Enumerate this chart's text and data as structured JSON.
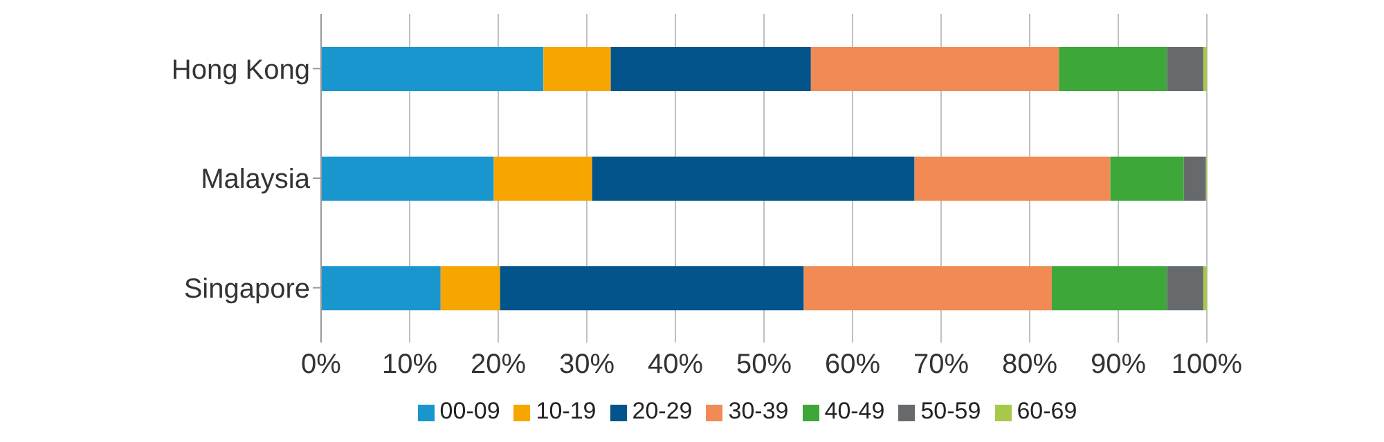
{
  "chart_data": {
    "type": "bar",
    "orientation": "horizontal",
    "stacked": true,
    "categories": [
      "Hong Kong",
      "Malaysia",
      "Singapore"
    ],
    "series": [
      {
        "name": "00-09",
        "color": "#1a96cf",
        "values": [
          25.1,
          19.5,
          13.5
        ]
      },
      {
        "name": "10-19",
        "color": "#f7a600",
        "values": [
          7.6,
          11.1,
          6.7
        ]
      },
      {
        "name": "20-29",
        "color": "#02548a",
        "values": [
          22.6,
          36.4,
          34.3
        ]
      },
      {
        "name": "30-39",
        "color": "#f28a55",
        "values": [
          28.0,
          22.1,
          28.0
        ]
      },
      {
        "name": "40-49",
        "color": "#3da739",
        "values": [
          12.2,
          8.3,
          13.0
        ]
      },
      {
        "name": "50-59",
        "color": "#676a6d",
        "values": [
          4.1,
          2.5,
          4.1
        ]
      },
      {
        "name": "60-69",
        "color": "#a7c94a",
        "values": [
          0.4,
          0.1,
          0.4
        ]
      }
    ],
    "xlim": [
      0,
      100
    ],
    "xticks": [
      {
        "value": 0,
        "label": "0%"
      },
      {
        "value": 10,
        "label": "10%"
      },
      {
        "value": 20,
        "label": "20%"
      },
      {
        "value": 30,
        "label": "30%"
      },
      {
        "value": 40,
        "label": "40%"
      },
      {
        "value": 50,
        "label": "50%"
      },
      {
        "value": 60,
        "label": "60%"
      },
      {
        "value": 70,
        "label": "70%"
      },
      {
        "value": 80,
        "label": "80%"
      },
      {
        "value": 90,
        "label": "90%"
      },
      {
        "value": 100,
        "label": "100%"
      }
    ],
    "grid": "x",
    "legend": "bottom"
  }
}
